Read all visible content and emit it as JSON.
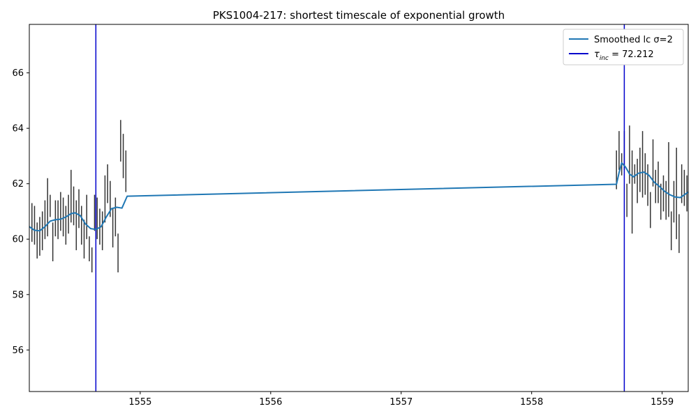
{
  "chart_data": {
    "type": "line",
    "title": "PKS1004-217: shortest timescale of exponential growth",
    "xlabel": "",
    "ylabel": "",
    "xlim": [
      1554.15,
      1559.2
    ],
    "ylim": [
      54.5,
      67.75
    ],
    "x_ticks": [
      1555,
      1556,
      1557,
      1558,
      1559
    ],
    "y_ticks": [
      56,
      58,
      60,
      62,
      64,
      66
    ],
    "x_tick_labels": [
      "1555",
      "1556",
      "1557",
      "1558",
      "1559"
    ],
    "y_tick_labels": [
      "56",
      "58",
      "60",
      "62",
      "64",
      "66"
    ],
    "grid": false,
    "legend_position": "top-right",
    "legend": {
      "smoothed_label": "Smoothed lc σ=2",
      "tau_prefix": "τ",
      "tau_sub": "inc",
      "tau_suffix": " = 72.212"
    },
    "series": [
      {
        "name": "Smoothed lc σ=2",
        "color": "#1f77b4",
        "x": [
          1554.15,
          1554.19,
          1554.23,
          1554.27,
          1554.31,
          1554.35,
          1554.39,
          1554.43,
          1554.47,
          1554.5,
          1554.54,
          1554.58,
          1554.62,
          1554.66,
          1554.7,
          1554.74,
          1554.78,
          1554.82,
          1554.86,
          1554.9,
          1558.65,
          1558.67,
          1558.69,
          1558.72,
          1558.75,
          1558.78,
          1558.82,
          1558.86,
          1558.9,
          1558.94,
          1558.98,
          1559.02,
          1559.06,
          1559.1,
          1559.14,
          1559.2
        ],
        "y": [
          60.45,
          60.32,
          60.3,
          60.45,
          60.65,
          60.7,
          60.72,
          60.8,
          60.92,
          60.95,
          60.85,
          60.55,
          60.38,
          60.35,
          60.45,
          60.8,
          61.1,
          61.15,
          61.12,
          61.55,
          61.98,
          62.4,
          62.75,
          62.6,
          62.35,
          62.25,
          62.38,
          62.42,
          62.3,
          62.05,
          61.9,
          61.72,
          61.6,
          61.52,
          61.5,
          61.7
        ]
      }
    ],
    "errorbars": {
      "color": "#333333",
      "x": [
        1554.17,
        1554.19,
        1554.21,
        1554.23,
        1554.25,
        1554.27,
        1554.29,
        1554.31,
        1554.33,
        1554.35,
        1554.37,
        1554.39,
        1554.41,
        1554.43,
        1554.45,
        1554.47,
        1554.49,
        1554.51,
        1554.53,
        1554.55,
        1554.57,
        1554.59,
        1554.61,
        1554.63,
        1554.65,
        1554.67,
        1554.69,
        1554.71,
        1554.73,
        1554.75,
        1554.77,
        1554.79,
        1554.81,
        1554.83,
        1554.85,
        1554.87,
        1554.89,
        1558.65,
        1558.67,
        1558.69,
        1558.71,
        1558.73,
        1558.75,
        1558.77,
        1558.79,
        1558.81,
        1558.83,
        1558.85,
        1558.87,
        1558.89,
        1558.91,
        1558.93,
        1558.95,
        1558.97,
        1558.99,
        1559.01,
        1559.03,
        1559.05,
        1559.07,
        1559.09,
        1559.11,
        1559.13,
        1559.15,
        1559.17,
        1559.19
      ],
      "lo": [
        59.9,
        59.8,
        59.3,
        59.4,
        59.6,
        60.0,
        60.1,
        60.8,
        59.2,
        60.1,
        60.0,
        60.3,
        60.1,
        59.8,
        60.2,
        60.6,
        60.5,
        59.6,
        60.4,
        59.8,
        59.3,
        60.0,
        59.2,
        58.8,
        60.3,
        60.0,
        59.8,
        59.6,
        60.6,
        61.3,
        60.8,
        59.7,
        60.1,
        58.8,
        62.8,
        62.2,
        61.7,
        61.8,
        62.5,
        62.3,
        62.5,
        60.8,
        62.0,
        60.2,
        62.0,
        61.3,
        61.7,
        61.5,
        61.6,
        61.2,
        60.4,
        61.9,
        61.3,
        61.3,
        60.7,
        61.0,
        60.7,
        60.8,
        59.6,
        60.6,
        60.0,
        59.5,
        61.3,
        61.2,
        61.0
      ],
      "hi": [
        61.3,
        61.2,
        60.6,
        60.8,
        61.0,
        61.4,
        62.2,
        61.6,
        60.6,
        61.4,
        61.4,
        61.7,
        61.5,
        61.2,
        61.6,
        62.5,
        61.9,
        61.4,
        61.8,
        61.2,
        60.7,
        61.6,
        60.1,
        59.7,
        61.6,
        61.5,
        61.1,
        61.0,
        62.3,
        62.7,
        62.1,
        61.1,
        61.5,
        60.2,
        64.3,
        63.8,
        63.2,
        63.2,
        63.9,
        63.1,
        63.9,
        62.0,
        64.1,
        63.2,
        62.7,
        62.9,
        63.3,
        63.9,
        63.1,
        62.7,
        61.7,
        63.6,
        62.5,
        62.8,
        62.0,
        62.3,
        62.1,
        63.5,
        61.0,
        62.1,
        63.3,
        60.9,
        62.7,
        62.5,
        62.3
      ]
    },
    "vlines": [
      {
        "name": "τ_inc = 72.212",
        "x": 1554.66,
        "color": "#0000cc"
      },
      {
        "name": "τ_inc = 72.212",
        "x": 1558.71,
        "color": "#0000cc"
      }
    ]
  }
}
